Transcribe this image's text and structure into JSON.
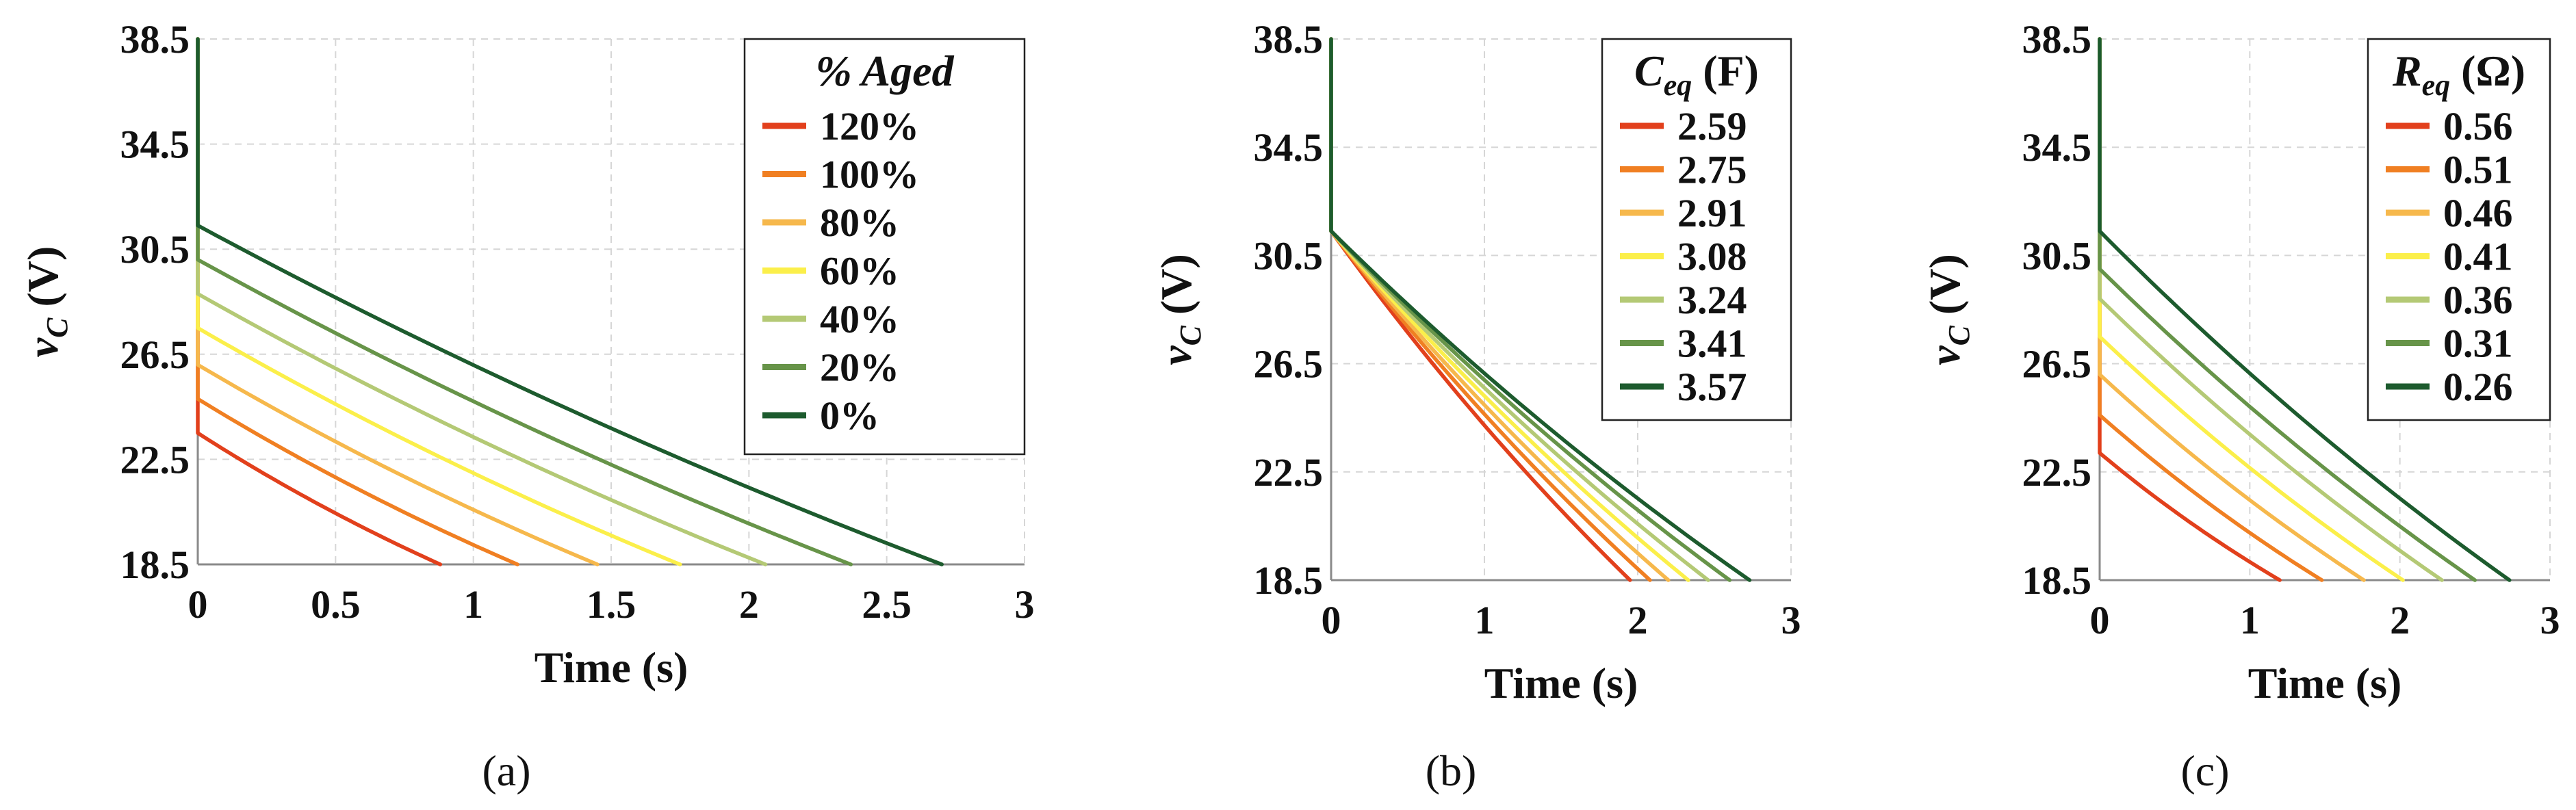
{
  "chart_data": [
    {
      "type": "line",
      "panel_caption": "(a)",
      "xlabel": "Time (s)",
      "ylabel_main": "v",
      "ylabel_sub": "C",
      "ylabel_unit": " (V)",
      "xlim": [
        0,
        3
      ],
      "ylim": [
        18.5,
        38.5
      ],
      "xticks": [
        "0",
        "0.5",
        "1",
        "1.5",
        "2",
        "2.5",
        "3"
      ],
      "yticks": [
        "38.5",
        "34.5",
        "30.5",
        "26.5",
        "22.5",
        "18.5"
      ],
      "legend": {
        "title": "% Aged",
        "title_italic": true,
        "placement": "top-right"
      },
      "series": [
        {
          "name": "120%",
          "color": "#e2401c",
          "start_v": 23.5,
          "end_t": 0.88
        },
        {
          "name": "100%",
          "color": "#f07f22",
          "start_v": 24.8,
          "end_t": 1.16
        },
        {
          "name": "80%",
          "color": "#f6b84c",
          "start_v": 26.1,
          "end_t": 1.45
        },
        {
          "name": "60%",
          "color": "#fbef4a",
          "start_v": 27.5,
          "end_t": 1.75
        },
        {
          "name": "40%",
          "color": "#b4c975",
          "start_v": 28.8,
          "end_t": 2.06
        },
        {
          "name": "20%",
          "color": "#679449",
          "start_v": 30.1,
          "end_t": 2.37
        },
        {
          "name": "0%",
          "color": "#1d5b2e",
          "start_v": 31.4,
          "end_t": 2.7
        }
      ]
    },
    {
      "type": "line",
      "panel_caption": "(b)",
      "xlabel": "Time (s)",
      "ylabel_main": "v",
      "ylabel_sub": "C",
      "ylabel_unit": " (V)",
      "xlim": [
        0,
        3
      ],
      "ylim": [
        18.5,
        38.5
      ],
      "xticks": [
        "0",
        "1",
        "2",
        "3"
      ],
      "yticks": [
        "38.5",
        "34.5",
        "30.5",
        "26.5",
        "22.5",
        "18.5"
      ],
      "legend": {
        "title_main": "C",
        "title_sub": "eq",
        "title_unit": " (F)",
        "placement": "top-right"
      },
      "series": [
        {
          "name": "2.59",
          "color": "#e2401c",
          "start_v": 31.4,
          "end_t": 1.95
        },
        {
          "name": "2.75",
          "color": "#f07f22",
          "start_v": 31.4,
          "end_t": 2.08
        },
        {
          "name": "2.91",
          "color": "#f6b84c",
          "start_v": 31.4,
          "end_t": 2.2
        },
        {
          "name": "3.08",
          "color": "#fbef4a",
          "start_v": 31.4,
          "end_t": 2.33
        },
        {
          "name": "3.24",
          "color": "#b4c975",
          "start_v": 31.4,
          "end_t": 2.46
        },
        {
          "name": "3.41",
          "color": "#679449",
          "start_v": 31.4,
          "end_t": 2.6
        },
        {
          "name": "3.57",
          "color": "#1d5b2e",
          "start_v": 31.4,
          "end_t": 2.73
        }
      ]
    },
    {
      "type": "line",
      "panel_caption": "(c)",
      "xlabel": "Time (s)",
      "ylabel_main": "v",
      "ylabel_sub": "C",
      "ylabel_unit": " (V)",
      "xlim": [
        0,
        3
      ],
      "ylim": [
        18.5,
        38.5
      ],
      "xticks": [
        "0",
        "1",
        "2",
        "3"
      ],
      "yticks": [
        "38.5",
        "34.5",
        "30.5",
        "26.5",
        "22.5",
        "18.5"
      ],
      "legend": {
        "title_main": "R",
        "title_sub": "eq",
        "title_unit": " (Ω)",
        "placement": "top-right"
      },
      "series": [
        {
          "name": "0.56",
          "color": "#e2401c",
          "start_v": 23.2,
          "end_t": 1.2
        },
        {
          "name": "0.51",
          "color": "#f07f22",
          "start_v": 24.6,
          "end_t": 1.48
        },
        {
          "name": "0.46",
          "color": "#f6b84c",
          "start_v": 26.1,
          "end_t": 1.76
        },
        {
          "name": "0.41",
          "color": "#fbef4a",
          "start_v": 27.5,
          "end_t": 2.02
        },
        {
          "name": "0.36",
          "color": "#b4c975",
          "start_v": 28.9,
          "end_t": 2.28
        },
        {
          "name": "0.31",
          "color": "#679449",
          "start_v": 30.0,
          "end_t": 2.5
        },
        {
          "name": "0.26",
          "color": "#1d5b2e",
          "start_v": 31.4,
          "end_t": 2.73
        }
      ]
    }
  ]
}
